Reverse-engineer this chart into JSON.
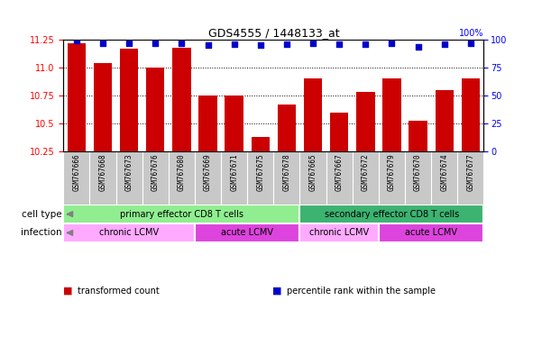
{
  "title": "GDS4555 / 1448133_at",
  "samples": [
    "GSM767666",
    "GSM767668",
    "GSM767673",
    "GSM767676",
    "GSM767680",
    "GSM767669",
    "GSM767671",
    "GSM767675",
    "GSM767678",
    "GSM767665",
    "GSM767667",
    "GSM767672",
    "GSM767679",
    "GSM767670",
    "GSM767674",
    "GSM767677"
  ],
  "bar_values": [
    11.22,
    11.04,
    11.17,
    11.0,
    11.18,
    10.75,
    10.75,
    10.38,
    10.67,
    10.9,
    10.6,
    10.78,
    10.9,
    10.52,
    10.8,
    10.9
  ],
  "percentile_values": [
    99,
    97,
    97,
    97,
    97,
    95,
    96,
    95,
    96,
    97,
    96,
    96,
    97,
    94,
    96,
    97
  ],
  "bar_color": "#cc0000",
  "percentile_color": "#0000cc",
  "ylim_left": [
    10.25,
    11.25
  ],
  "ylim_right": [
    0,
    100
  ],
  "yticks_left": [
    10.25,
    10.5,
    10.75,
    11.0,
    11.25
  ],
  "yticks_right": [
    0,
    25,
    50,
    75,
    100
  ],
  "cell_type_groups": [
    {
      "label": "primary effector CD8 T cells",
      "start": 0,
      "end": 8,
      "color": "#90ee90"
    },
    {
      "label": "secondary effector CD8 T cells",
      "start": 9,
      "end": 15,
      "color": "#3cb371"
    }
  ],
  "infection_groups": [
    {
      "label": "chronic LCMV",
      "start": 0,
      "end": 4,
      "color": "#ffaaff"
    },
    {
      "label": "acute LCMV",
      "start": 5,
      "end": 8,
      "color": "#dd44dd"
    },
    {
      "label": "chronic LCMV",
      "start": 9,
      "end": 11,
      "color": "#ffaaff"
    },
    {
      "label": "acute LCMV",
      "start": 12,
      "end": 15,
      "color": "#dd44dd"
    }
  ],
  "legend_items": [
    {
      "label": "transformed count",
      "color": "#cc0000"
    },
    {
      "label": "percentile rank within the sample",
      "color": "#0000cc"
    }
  ],
  "bg_color": "#ffffff",
  "sample_bg_color": "#c8c8c8",
  "row_label_cell_type": "cell type",
  "row_label_infection": "infection"
}
